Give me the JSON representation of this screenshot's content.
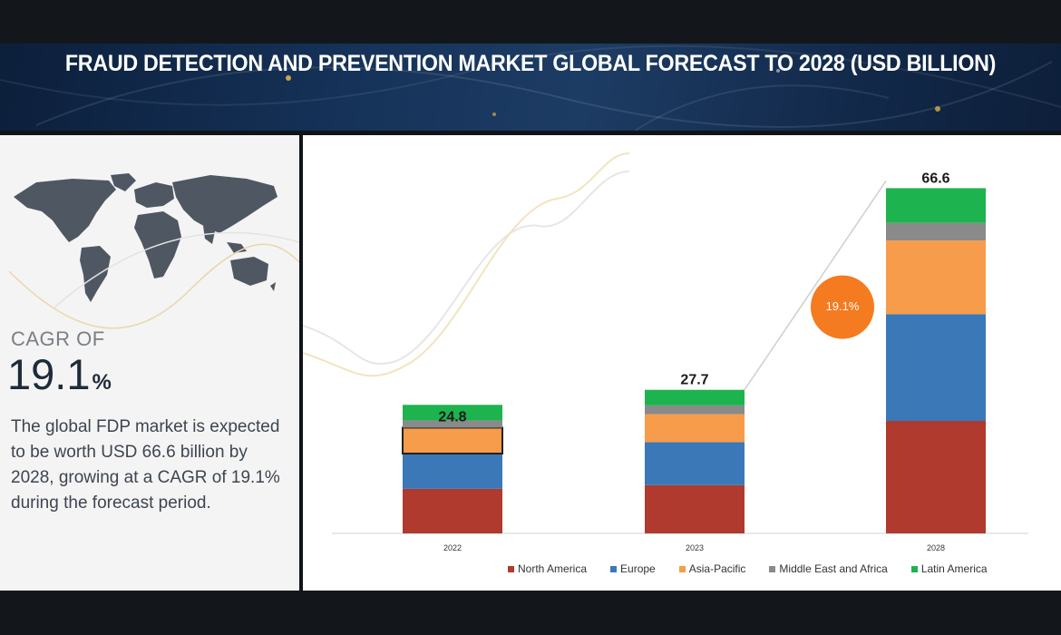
{
  "banner": {
    "title": "FRAUD DETECTION AND PREVENTION MARKET GLOBAL FORECAST TO 2028 (USD BILLION)"
  },
  "left_panel": {
    "map_icon": "world-map-icon",
    "cagr_label": "CAGR OF",
    "cagr_number": "19.1",
    "cagr_unit": "%",
    "description": "The global FDP market is expected to be worth USD 66.6 billion by 2028, growing at a CAGR of 19.1% during the forecast period."
  },
  "colors": {
    "north_america": "#b03a2e",
    "europe": "#3a78b8",
    "asia_pacific": "#f79c4a",
    "middle_east_africa": "#8a8a8a",
    "latin_america": "#1db34e",
    "cagr_bubble": "#f47b20"
  },
  "chart_data": {
    "type": "bar",
    "stacked": true,
    "categories": [
      "2022",
      "2023",
      "2028"
    ],
    "totals": [
      24.8,
      27.7,
      66.6
    ],
    "total_labels": [
      "24.8",
      "27.7",
      "66.6"
    ],
    "series": [
      {
        "name": "North America",
        "color": "#b03a2e",
        "values": [
          8.6,
          9.3,
          21.7
        ]
      },
      {
        "name": "Europe",
        "color": "#3a78b8",
        "values": [
          6.8,
          8.3,
          20.6
        ]
      },
      {
        "name": "Asia-Pacific",
        "color": "#f79c4a",
        "values": [
          5.0,
          5.4,
          14.2
        ]
      },
      {
        "name": "Middle East and Africa",
        "color": "#8a8a8a",
        "values": [
          1.4,
          1.7,
          3.4
        ]
      },
      {
        "name": "Latin America",
        "color": "#1db34e",
        "values": [
          3.0,
          3.0,
          6.7
        ]
      }
    ],
    "highlighted_segment": {
      "category": "2022",
      "series": "Asia-Pacific"
    },
    "annotation": {
      "label": "19.1%",
      "meaning": "CAGR"
    },
    "ylim": [
      0,
      70
    ],
    "grid": false,
    "legend": "bottom"
  }
}
